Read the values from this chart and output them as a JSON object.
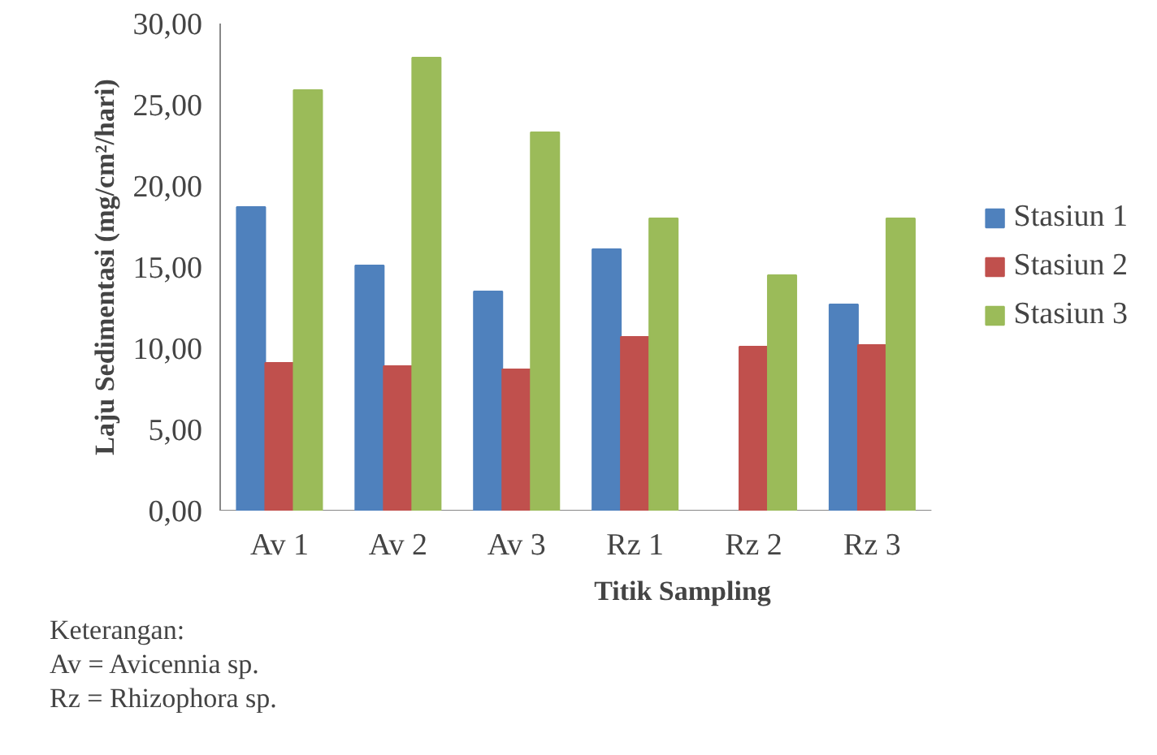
{
  "chart_data": {
    "type": "bar",
    "ylabel": "Laju Sedimentasi (mg/cm²/hari)",
    "xlabel": "Titik Sampling",
    "categories": [
      "Av 1",
      "Av 2",
      "Av 3",
      "Rz 1",
      "Rz 2",
      "Rz 3"
    ],
    "series": [
      {
        "name": "Stasiun 1",
        "color": "#4f81bd",
        "values": [
          18.7,
          15.1,
          13.5,
          16.1,
          null,
          12.7
        ]
      },
      {
        "name": "Stasiun 2",
        "color": "#c0504d",
        "values": [
          9.1,
          8.9,
          8.7,
          10.7,
          10.1,
          10.2
        ]
      },
      {
        "name": "Stasiun 3",
        "color": "#9bbb59",
        "values": [
          25.9,
          27.9,
          23.3,
          18.0,
          14.5,
          18.0
        ]
      }
    ],
    "ylim": [
      0,
      30
    ],
    "yticks": [
      {
        "value": 0,
        "label": "0,00"
      },
      {
        "value": 5,
        "label": "5,00"
      },
      {
        "value": 10,
        "label": "10,00"
      },
      {
        "value": 15,
        "label": "15,00"
      },
      {
        "value": 20,
        "label": "20,00"
      },
      {
        "value": 25,
        "label": "25,00"
      },
      {
        "value": 30,
        "label": "30,00"
      }
    ],
    "grid": false,
    "legend": "right",
    "annotations": [
      "Keterangan:",
      "Av = Avicennia sp.",
      "Rz = Rhizophora sp."
    ]
  }
}
